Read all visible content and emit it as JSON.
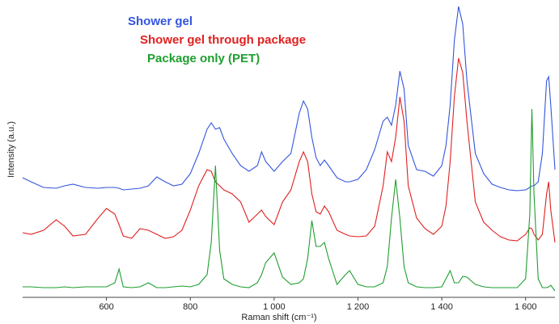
{
  "chart_data": {
    "type": "line",
    "xlabel": "Raman shift (cm⁻¹)",
    "ylabel": "Intensity (a.u.)",
    "xlim": [
      400,
      1670
    ],
    "ylim": [
      0,
      360
    ],
    "xticks": [
      600,
      800,
      {
        "value": 1000,
        "label": "1 000"
      },
      {
        "value": 1200,
        "label": "1 200"
      },
      {
        "value": 1400,
        "label": "1 400"
      },
      {
        "value": 1600,
        "label": "1 600"
      }
    ],
    "x": [
      400,
      420,
      450,
      480,
      500,
      520,
      550,
      580,
      600,
      620,
      630,
      640,
      660,
      680,
      700,
      720,
      740,
      760,
      780,
      800,
      820,
      840,
      850,
      860,
      870,
      880,
      900,
      920,
      940,
      960,
      970,
      980,
      1000,
      1020,
      1040,
      1060,
      1070,
      1080,
      1090,
      1100,
      1110,
      1120,
      1130,
      1150,
      1170,
      1180,
      1200,
      1220,
      1240,
      1260,
      1270,
      1280,
      1290,
      1300,
      1310,
      1320,
      1340,
      1360,
      1380,
      1400,
      1410,
      1420,
      1430,
      1440,
      1450,
      1460,
      1480,
      1500,
      1520,
      1540,
      1560,
      1580,
      1600,
      1610,
      1615,
      1620,
      1630,
      1640,
      1650,
      1655,
      1660,
      1670
    ],
    "series": [
      {
        "name": "Shower gel",
        "color": "#3355dd",
        "values": [
          148,
          143,
          136,
          135,
          138,
          140,
          136,
          135,
          136,
          136,
          135,
          133,
          134,
          135,
          138,
          149,
          143,
          138,
          140,
          153,
          178,
          208,
          216,
          208,
          210,
          196,
          178,
          163,
          156,
          163,
          180,
          168,
          156,
          168,
          178,
          228,
          243,
          233,
          198,
          173,
          163,
          170,
          163,
          148,
          143,
          143,
          146,
          158,
          183,
          218,
          223,
          213,
          238,
          280,
          258,
          188,
          158,
          156,
          150,
          163,
          188,
          238,
          318,
          360,
          338,
          268,
          178,
          153,
          140,
          136,
          133,
          132,
          133,
          136,
          138,
          138,
          143,
          178,
          268,
          273,
          238,
          158
        ]
      },
      {
        "name": "Shower gel through package",
        "color": "#e02020",
        "values": [
          80,
          78,
          83,
          96,
          88,
          76,
          78,
          98,
          110,
          103,
          90,
          76,
          73,
          85,
          83,
          78,
          73,
          75,
          83,
          108,
          138,
          158,
          156,
          143,
          138,
          133,
          128,
          118,
          93,
          103,
          108,
          100,
          90,
          118,
          133,
          168,
          180,
          168,
          128,
          106,
          103,
          113,
          106,
          83,
          78,
          76,
          75,
          76,
          88,
          138,
          180,
          168,
          198,
          248,
          218,
          138,
          98,
          85,
          78,
          88,
          113,
          168,
          248,
          296,
          278,
          218,
          118,
          93,
          83,
          75,
          71,
          70,
          78,
          86,
          85,
          78,
          71,
          78,
          128,
          143,
          108,
          68
        ]
      },
      {
        "name": "Package only (PET)",
        "color": "#1e9e2e",
        "values": [
          13,
          13,
          12,
          12,
          13,
          12,
          13,
          13,
          13,
          18,
          35,
          13,
          12,
          13,
          18,
          12,
          12,
          13,
          14,
          13,
          16,
          28,
          68,
          163,
          58,
          23,
          16,
          13,
          12,
          18,
          28,
          43,
          55,
          25,
          16,
          18,
          23,
          48,
          95,
          63,
          63,
          68,
          48,
          16,
          28,
          33,
          16,
          13,
          13,
          18,
          38,
          98,
          146,
          98,
          38,
          18,
          13,
          12,
          12,
          13,
          23,
          33,
          18,
          18,
          26,
          25,
          16,
          13,
          12,
          12,
          12,
          12,
          23,
          103,
          233,
          128,
          23,
          12,
          12,
          13,
          15,
          8
        ]
      }
    ]
  }
}
